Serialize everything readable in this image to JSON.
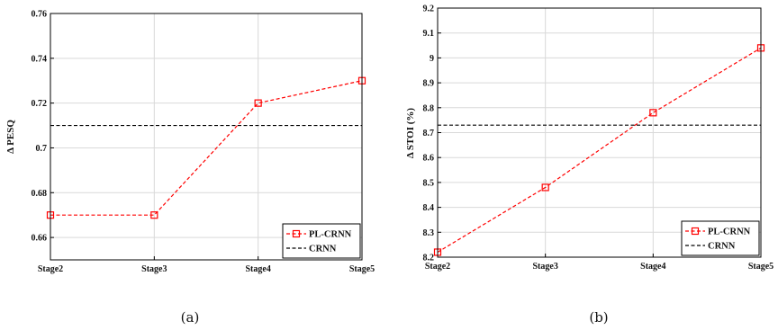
{
  "chart_data": [
    {
      "type": "line",
      "categories": [
        "Stage2",
        "Stage3",
        "Stage4",
        "Stage5"
      ],
      "ylabel": "Δ PESQ",
      "ylim": [
        0.65,
        0.76
      ],
      "yticks": [
        "0.66",
        "0.68",
        "0.7",
        "0.72",
        "0.74",
        "0.76"
      ],
      "grid": true,
      "legend_position": "bottom-right",
      "caption": "(a)",
      "series": [
        {
          "name": "PL-CRNN",
          "values": [
            0.67,
            0.67,
            0.72,
            0.73
          ],
          "color": "#ff0000",
          "style": "dashed",
          "marker": "square"
        },
        {
          "name": "CRNN",
          "values": [
            0.71,
            0.71,
            0.71,
            0.71
          ],
          "color": "#000000",
          "style": "dashed",
          "marker": "none"
        }
      ]
    },
    {
      "type": "line",
      "categories": [
        "Stage2",
        "Stage3",
        "Stage4",
        "Stage5"
      ],
      "ylabel": "Δ STOI (%)",
      "ylim": [
        8.2,
        9.2
      ],
      "yticks": [
        "8.2",
        "8.3",
        "8.4",
        "8.5",
        "8.6",
        "8.7",
        "8.8",
        "8.9",
        "9",
        "9.1",
        "9.2"
      ],
      "grid": true,
      "legend_position": "bottom-right",
      "caption": "(b)",
      "series": [
        {
          "name": "PL-CRNN",
          "values": [
            8.22,
            8.48,
            8.78,
            9.04
          ],
          "color": "#ff0000",
          "style": "dashed",
          "marker": "square"
        },
        {
          "name": "CRNN",
          "values": [
            8.73,
            8.73,
            8.73,
            8.73
          ],
          "color": "#000000",
          "style": "dashed",
          "marker": "none"
        }
      ]
    }
  ]
}
